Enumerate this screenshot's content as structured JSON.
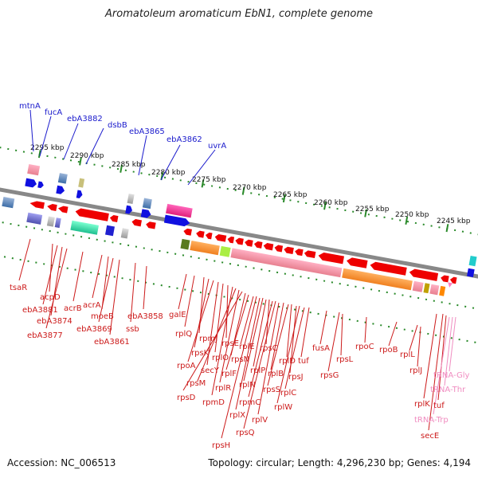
{
  "title": "Aromatoleum aromaticum EbN1, complete genome",
  "accession": "Accession: NC_006513",
  "topology": "Topology: circular; Length: 4,296,230 bp; Genes: 4,194",
  "scale_ticks": [
    "2295 kbp",
    "2290 kbp",
    "2285 kbp",
    "2280 kbp",
    "2275 kbp",
    "2270 kbp",
    "2265 kbp",
    "2260 kbp",
    "2255 kbp",
    "2250 kbp",
    "2245 kbp"
  ],
  "top_genes": [
    "mtnA",
    "fucA",
    "ebA3882",
    "dsbB",
    "ebA3865",
    "ebA3862",
    "uvrA"
  ],
  "bottom_genes": [
    "tsaR",
    "acpD",
    "ebA3881",
    "ebA3874",
    "ebA3877",
    "acrB",
    "acrA",
    "moeB",
    "ebA3869",
    "ebA3861",
    "ssb",
    "ebA3858",
    "galE",
    "rplQ",
    "rpmJ",
    "rpsK",
    "rpoA",
    "secY",
    "rplO",
    "rpsE",
    "rpmD",
    "rpsM",
    "rplR",
    "rpsD",
    "rpsN",
    "rplF",
    "rplE",
    "rpsH",
    "rplX",
    "rplN",
    "rplP",
    "rpsC",
    "rpmC",
    "rpsQ",
    "rplV",
    "rplB",
    "rpsS",
    "rplD",
    "rpsJ",
    "rplW",
    "rplC",
    "tuf",
    "fusA",
    "rpsG",
    "rpsL",
    "rpoC",
    "rpoB",
    "rplL",
    "rplJ",
    "rplK",
    "secE",
    "tuf",
    "tRNA-Gly",
    "tRNA-Thr",
    "tRNA-Trp"
  ],
  "colors": {
    "backbone": "#888888",
    "tick_dot": "#2a8a2a",
    "forward_arrow": "#1010e0",
    "reverse_arrow": "#ee0000",
    "top_label": "#1a1acc",
    "bottom_label": "#cc1a1a",
    "trna_label": "#f08cc0"
  }
}
